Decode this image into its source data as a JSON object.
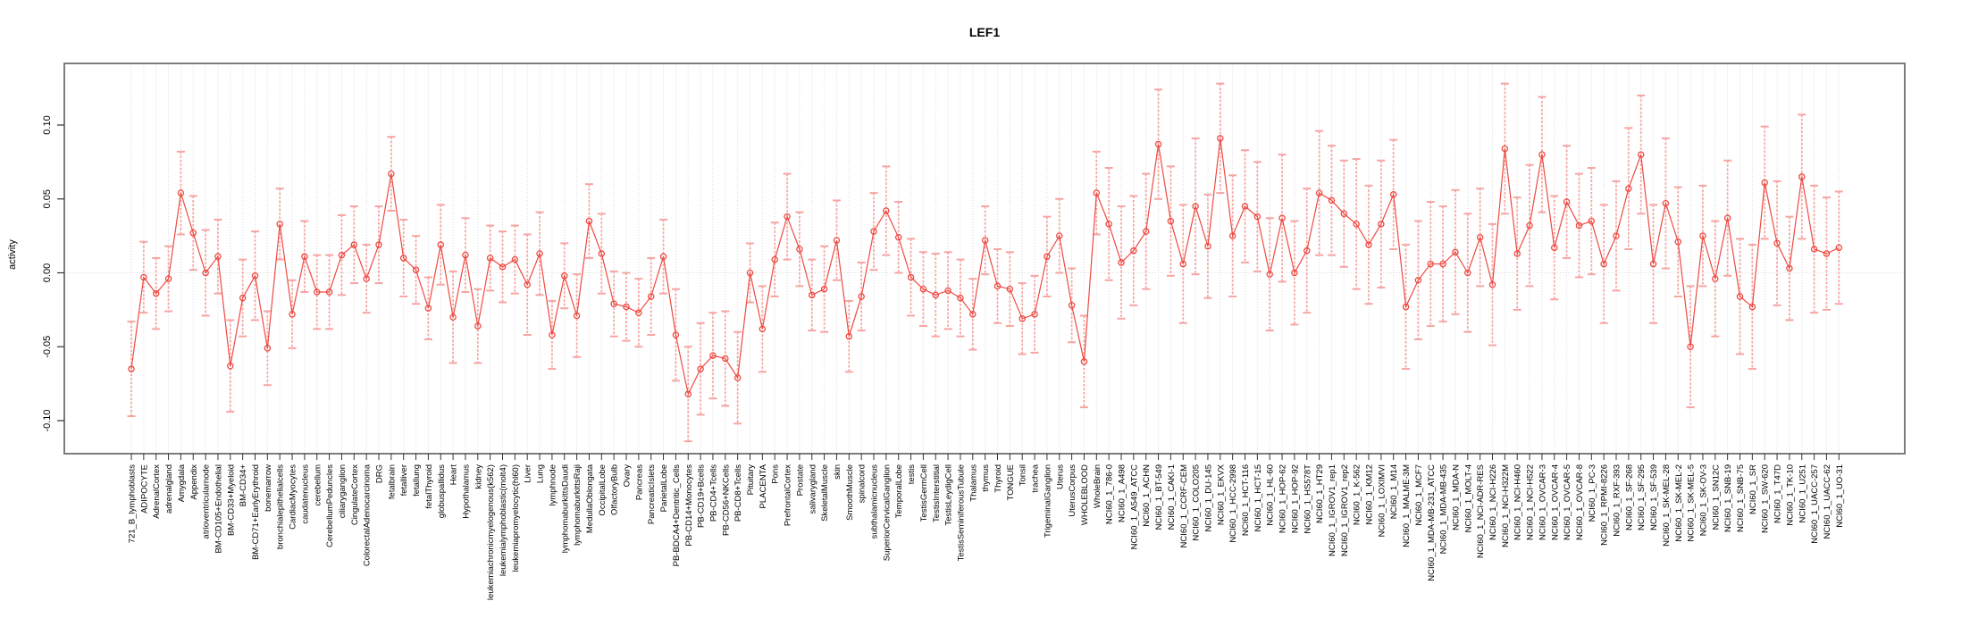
{
  "figure": {
    "title": "LEF1",
    "ylabel": "activity"
  },
  "chart_data": {
    "type": "line",
    "subtype": "points-with-error-bars",
    "title": "LEF1",
    "xlabel": "",
    "ylabel": "activity",
    "ylim": [
      -0.122,
      0.142
    ],
    "yticks": [
      {
        "label": "0.10",
        "value": 0.1
      },
      {
        "label": "0.05",
        "value": 0.05
      },
      {
        "label": "0.00",
        "value": 0.0
      },
      {
        "label": "-0.05",
        "value": -0.05
      },
      {
        "label": "-0.10",
        "value": -0.1
      }
    ],
    "grid": {
      "vertical_per_category": true,
      "horizontal_zero_line": true,
      "style": "dotted"
    },
    "legend": "none",
    "marker": "open-circle",
    "colors": {
      "line": "#ee4a42",
      "marker": "#ee4a42",
      "error_bar": "#f6a5a2",
      "gridline": "#dcdcdc",
      "box": "#7d7d7d",
      "text": "#000000"
    },
    "categories": [
      "721_B_lymphoblasts",
      "ADIPOCYTE",
      "AdrenalCortex",
      "adrenalgland",
      "Amygdala",
      "Appendix",
      "atrioventricularnode",
      "BM-CD105+Endothelial",
      "BM-CD33+Myeloid",
      "BM-CD34+",
      "BM-CD71+EarlyErythroid",
      "bonemarrow",
      "bronchialepithelialcells",
      "CardiacMyocytes",
      "caudatenucleus",
      "cerebellum",
      "CerebellumPeduncles",
      "ciliaryganglion",
      "CingulateCortex",
      "ColorectalAdenocarcinoma",
      "DRG",
      "fetalbrain",
      "fetalliver",
      "fetallung",
      "fetalThyroid",
      "globuspallidus",
      "Heart",
      "Hypothalamus",
      "kidney",
      "leukemiachronicmyelogenous(k562)",
      "leukemialymphoblastic(molt4)",
      "leukemiapromyelocytic(hl60)",
      "Liver",
      "Lung",
      "lymphnode",
      "lymphomaburkittsDaudi",
      "lymphomaburkittsRaji",
      "MedullaOblongata",
      "OccipitalLobe",
      "OlfactoryBulb",
      "Ovary",
      "Pancreas",
      "PancreaticIslets",
      "ParietalLobe",
      "PB-BDCA4+Dentritic_Cells",
      "PB-CD14+Monocytes",
      "PB-CD19+Bcells",
      "PB-CD4+Tcells",
      "PB-CD56+NKCells",
      "PB-CD8+Tcells",
      "Pituitary",
      "PLACENTA",
      "Pons",
      "PrefrontalCortex",
      "Prostate",
      "salivarygland",
      "SkeletalMuscle",
      "skin",
      "SmoothMuscle",
      "spinalcord",
      "subthalamicnucleus",
      "SuperiorCervicalGanglion",
      "TemporalLobe",
      "testis",
      "TestisGermCell",
      "TestisInterstitial",
      "TestisLeydigCell",
      "TestisSeminiferousTubule",
      "Thalamus",
      "thymus",
      "Thyroid",
      "TONGUE",
      "Tonsil",
      "trachea",
      "TrigeminalGanglion",
      "Uterus",
      "UterusCorpus",
      "WHOLEBLOOD",
      "WholeBrain",
      "NCI60_1_786-0",
      "NCI60_1_A498",
      "NCI60_1_A549_ATCC",
      "NCI60_1_ACHN",
      "NCI60_1_BT-549",
      "NCI60_1_CAKI-1",
      "NCI60_1_CCRF-CEM",
      "NCI60_1_COLO205",
      "NCI60_1_DU-145",
      "NCI60_1_EKVX",
      "NCI60_1_HCC-2998",
      "NCI60_1_HCT-116",
      "NCI60_1_HCT-15",
      "NCI60_1_HL-60",
      "NCI60_1_HOP-62",
      "NCI60_1_HOP-92",
      "NCI60_1_HS578T",
      "NCI60_1_HT29",
      "NCI60_1_IGROV1_rep1",
      "NCI60_1_IGROV1_rep2",
      "NCI60_1_K-562",
      "NCI60_1_KM12",
      "NCI60_1_LOXIMVI",
      "NCI60_1_M14",
      "NCI60_1_MALME-3M",
      "NCI60_1_MCF7",
      "NCI60_1_MDA-MB-231_ATCC",
      "NCI60_1_MDA-MB-435",
      "NCI60_1_MDA-N",
      "NCI60_1_MOLT-4",
      "NCI60_1_NCI-ADR-RES",
      "NCI60_1_NCI-H226",
      "NCI60_1_NCI-H322M",
      "NCI60_1_NCI-H460",
      "NCI60_1_NCI-H522",
      "NCI60_1_OVCAR-3",
      "NCI60_1_OVCAR-4",
      "NCI60_1_OVCAR-5",
      "NCI60_1_OVCAR-8",
      "NCI60_1_PC-3",
      "NCI60_1_RPMI-8226",
      "NCI60_1_RXF-393",
      "NCI60_1_SF-268",
      "NCI60_1_SF-295",
      "NCI60_1_SF-539",
      "NCI60_1_SK-MEL-28",
      "NCI60_1_SK-MEL-2",
      "NCI60_1_SK-MEL-5",
      "NCI60_1_SK-OV-3",
      "NCI60_1_SN12C",
      "NCI60_1_SNB-19",
      "NCI60_1_SNB-75",
      "NCI60_1_SR",
      "NCI60_1_SW-620",
      "NCI60_1_T47D",
      "NCI60_1_TK-10",
      "NCI60_1_U251",
      "NCI60_1_UACC-257",
      "NCI60_1_UACC-62",
      "NCI60_1_UO-31"
    ],
    "values": [
      -0.065,
      -0.003,
      -0.014,
      -0.004,
      0.054,
      0.027,
      0.0,
      0.011,
      -0.063,
      -0.017,
      -0.002,
      -0.051,
      0.033,
      -0.028,
      0.011,
      -0.013,
      -0.013,
      0.012,
      0.019,
      -0.004,
      0.019,
      0.067,
      0.01,
      0.002,
      -0.024,
      0.019,
      -0.03,
      0.012,
      -0.036,
      0.01,
      0.004,
      0.009,
      -0.008,
      0.013,
      -0.042,
      -0.002,
      -0.029,
      0.035,
      0.013,
      -0.021,
      -0.023,
      -0.027,
      -0.016,
      0.011,
      -0.042,
      -0.082,
      -0.065,
      -0.056,
      -0.058,
      -0.071,
      0.0,
      -0.038,
      0.009,
      0.038,
      0.016,
      -0.015,
      -0.011,
      0.022,
      -0.043,
      -0.016,
      0.028,
      0.042,
      0.024,
      -0.003,
      -0.011,
      -0.015,
      -0.012,
      -0.017,
      -0.028,
      0.022,
      -0.009,
      -0.011,
      -0.031,
      -0.028,
      0.011,
      0.025,
      -0.022,
      -0.06,
      0.054,
      0.033,
      0.007,
      0.015,
      0.028,
      0.087,
      0.035,
      0.006,
      0.045,
      0.018,
      0.091,
      0.025,
      0.045,
      0.038,
      -0.001,
      0.037,
      0.0,
      0.015,
      0.054,
      0.049,
      0.04,
      0.033,
      0.019,
      0.033,
      0.053,
      -0.023,
      -0.005,
      0.006,
      0.006,
      0.014,
      0.0,
      0.024,
      -0.008,
      0.084,
      0.013,
      0.032,
      0.08,
      0.017,
      0.048,
      0.032,
      0.035,
      0.006,
      0.025,
      0.057,
      0.08,
      0.006,
      0.047,
      0.021,
      -0.05,
      0.025,
      -0.004,
      0.037,
      -0.016,
      -0.023,
      0.061,
      0.02,
      0.003,
      0.065,
      0.016,
      0.013,
      0.017
    ],
    "errors": [
      0.032,
      0.024,
      0.024,
      0.022,
      0.028,
      0.025,
      0.029,
      0.025,
      0.031,
      0.026,
      0.03,
      0.025,
      0.024,
      0.023,
      0.024,
      0.025,
      0.025,
      0.027,
      0.026,
      0.023,
      0.026,
      0.025,
      0.026,
      0.023,
      0.021,
      0.027,
      0.031,
      0.025,
      0.025,
      0.022,
      0.024,
      0.023,
      0.034,
      0.028,
      0.023,
      0.022,
      0.028,
      0.025,
      0.027,
      0.022,
      0.023,
      0.023,
      0.026,
      0.025,
      0.031,
      0.032,
      0.031,
      0.029,
      0.032,
      0.031,
      0.02,
      0.029,
      0.025,
      0.029,
      0.025,
      0.024,
      0.029,
      0.027,
      0.024,
      0.023,
      0.026,
      0.03,
      0.024,
      0.026,
      0.025,
      0.028,
      0.026,
      0.026,
      0.024,
      0.023,
      0.025,
      0.025,
      0.024,
      0.026,
      0.027,
      0.025,
      0.025,
      0.031,
      0.028,
      0.038,
      0.038,
      0.037,
      0.039,
      0.037,
      0.037,
      0.04,
      0.046,
      0.035,
      0.037,
      0.041,
      0.038,
      0.037,
      0.038,
      0.043,
      0.035,
      0.042,
      0.042,
      0.037,
      0.036,
      0.044,
      0.04,
      0.043,
      0.037,
      0.042,
      0.04,
      0.042,
      0.039,
      0.042,
      0.04,
      0.033,
      0.041,
      0.044,
      0.038,
      0.041,
      0.039,
      0.035,
      0.038,
      0.035,
      0.036,
      0.04,
      0.037,
      0.041,
      0.04,
      0.04,
      0.044,
      0.037,
      0.041,
      0.034,
      0.039,
      0.039,
      0.039,
      0.042,
      0.038,
      0.042,
      0.035,
      0.042,
      0.043,
      0.038,
      0.038
    ]
  }
}
